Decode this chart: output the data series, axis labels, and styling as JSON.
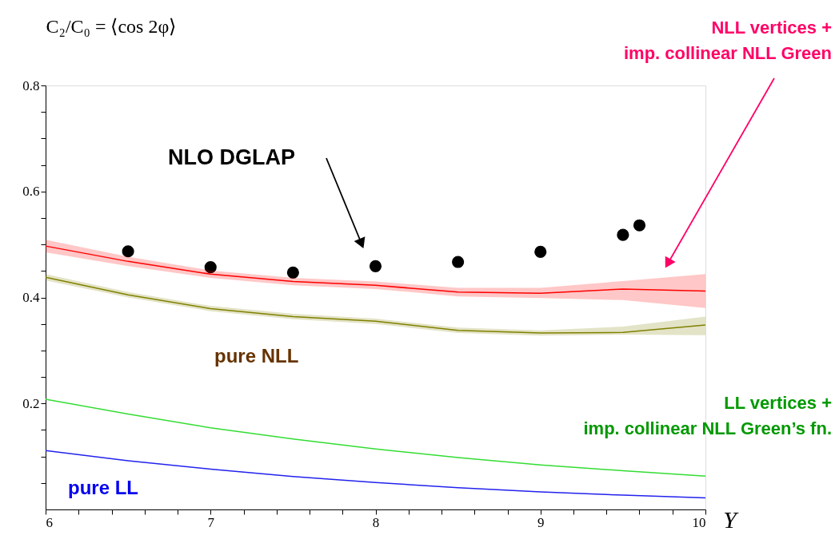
{
  "chart_data": {
    "type": "line",
    "xlabel": "Y",
    "ylabel": "C₂/C₀ = ⟨cos 2φ⟩",
    "xlim": [
      6,
      10
    ],
    "ylim": [
      0,
      0.8
    ],
    "xticks": [
      6,
      {
        "value": 6.2,
        "label": null
      },
      {
        "value": 6.4,
        "label": null
      },
      {
        "value": 6.6,
        "label": null
      },
      {
        "value": 6.8,
        "label": null
      },
      7,
      {
        "value": 7.2,
        "label": null
      },
      {
        "value": 7.4,
        "label": null
      },
      {
        "value": 7.6,
        "label": null
      },
      {
        "value": 7.8,
        "label": null
      },
      8,
      {
        "value": 8.2,
        "label": null
      },
      {
        "value": 8.4,
        "label": null
      },
      {
        "value": 8.6,
        "label": null
      },
      {
        "value": 8.8,
        "label": null
      },
      9,
      {
        "value": 9.2,
        "label": null
      },
      {
        "value": 9.4,
        "label": null
      },
      {
        "value": 9.6,
        "label": null
      },
      {
        "value": 9.8,
        "label": null
      },
      10
    ],
    "yticks": [
      {
        "value": 0.05,
        "label": null
      },
      {
        "value": 0.1,
        "label": null
      },
      {
        "value": 0.15,
        "label": null
      },
      0.2,
      {
        "value": 0.25,
        "label": null
      },
      {
        "value": 0.3,
        "label": null
      },
      {
        "value": 0.35,
        "label": null
      },
      0.4,
      {
        "value": 0.45,
        "label": null
      },
      {
        "value": 0.5,
        "label": null
      },
      {
        "value": 0.55,
        "label": null
      },
      0.6,
      {
        "value": 0.65,
        "label": null
      },
      {
        "value": 0.7,
        "label": null
      },
      {
        "value": 0.75,
        "label": null
      },
      0.8
    ],
    "grid": false,
    "series": [
      {
        "name": "NLO DGLAP",
        "type": "scatter",
        "marker": "circle",
        "color": "#000000",
        "x": [
          6.5,
          7,
          7.5,
          8,
          8.5,
          9,
          9.5,
          9.6
        ],
        "values": [
          0.487,
          0.457,
          0.447,
          0.459,
          0.467,
          0.486,
          0.518,
          0.536
        ]
      },
      {
        "name": "NLL vertices +\nimp. collinear NLL Green",
        "color": "#ff0000",
        "x": [
          6,
          6.5,
          7,
          7.5,
          8,
          8.5,
          9,
          9.5,
          10
        ],
        "values": [
          0.497,
          0.468,
          0.444,
          0.43,
          0.423,
          0.41,
          0.408,
          0.416,
          0.412
        ],
        "lower": [
          0.485,
          0.459,
          0.437,
          0.423,
          0.416,
          0.402,
          0.399,
          0.395,
          0.38
        ],
        "upper": [
          0.509,
          0.477,
          0.451,
          0.437,
          0.43,
          0.418,
          0.418,
          0.431,
          0.444
        ]
      },
      {
        "name": "pure NLL",
        "color": "#808000",
        "x": [
          6,
          6.5,
          7,
          7.5,
          8,
          8.5,
          9,
          9.5,
          10
        ],
        "values": [
          0.438,
          0.405,
          0.379,
          0.364,
          0.355,
          0.338,
          0.333,
          0.334,
          0.348
        ],
        "lower": [
          0.432,
          0.4,
          0.374,
          0.359,
          0.35,
          0.333,
          0.328,
          0.33,
          0.329
        ],
        "upper": [
          0.444,
          0.41,
          0.384,
          0.369,
          0.36,
          0.343,
          0.338,
          0.345,
          0.364
        ]
      },
      {
        "name": "LL vertices +\nimp. collinear NLL Green’s fn.",
        "color": "#33dd33",
        "x": [
          6,
          6.5,
          7,
          7.5,
          8,
          8.5,
          9,
          9.5,
          10
        ],
        "values": [
          0.208,
          0.18,
          0.154,
          0.133,
          0.114,
          0.098,
          0.084,
          0.073,
          0.063
        ]
      },
      {
        "name": "pure LL",
        "color": "#2222ee",
        "x": [
          6,
          6.5,
          7,
          7.5,
          8,
          8.5,
          9,
          9.5,
          10
        ],
        "values": [
          0.111,
          0.092,
          0.076,
          0.062,
          0.051,
          0.041,
          0.033,
          0.027,
          0.022
        ]
      }
    ]
  }
}
